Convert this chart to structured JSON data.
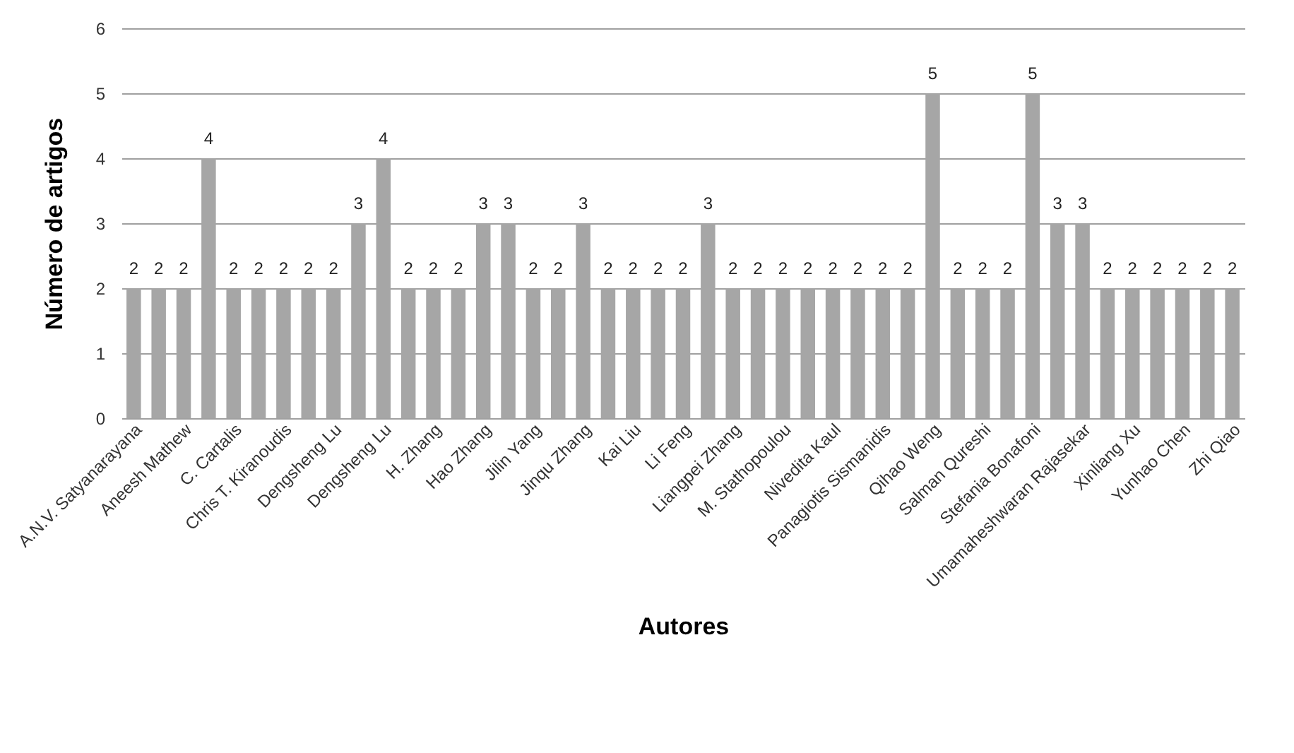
{
  "chart_data": {
    "type": "bar",
    "xlabel": "Autores",
    "ylabel": "Número de artigos",
    "categories": [
      "A.N.V. Satyanarayana",
      null,
      "Aneesh Mathew",
      null,
      "C. Cartalis",
      null,
      "Chris T. Kiranoudis",
      null,
      "Dengsheng Lu",
      null,
      "Dengsheng Lu",
      null,
      "H. Zhang",
      null,
      "Hao Zhang",
      null,
      "Jilin Yang",
      null,
      "Jinqu  Zhang",
      null,
      "Kai Liu",
      null,
      "Li Feng",
      null,
      "Liangpei Zhang",
      null,
      "M. Stathopoulou",
      null,
      "Nivedita Kaul",
      null,
      "Panagiotis Sismanidis",
      null,
      "Qihao Weng",
      null,
      "Salman Qureshi",
      null,
      "Stefania Bonafoni",
      null,
      "Umamaheshwaran Rajasekar",
      null,
      "Xinliang Xu",
      null,
      "Yunhao Chen",
      null,
      "Zhi Qiao"
    ],
    "values": [
      2,
      2,
      2,
      4,
      2,
      2,
      2,
      2,
      2,
      3,
      4,
      2,
      2,
      2,
      3,
      3,
      2,
      2,
      3,
      2,
      2,
      2,
      2,
      3,
      2,
      2,
      2,
      2,
      2,
      2,
      2,
      2,
      5,
      2,
      2,
      2,
      5,
      3,
      3,
      2,
      2,
      2,
      2,
      2,
      2
    ],
    "color": "#a6a6a6",
    "ylim": [
      0,
      6
    ],
    "yticks": [
      0,
      1,
      2,
      3,
      4,
      5,
      6
    ],
    "grid": "y",
    "data_labels": true
  }
}
